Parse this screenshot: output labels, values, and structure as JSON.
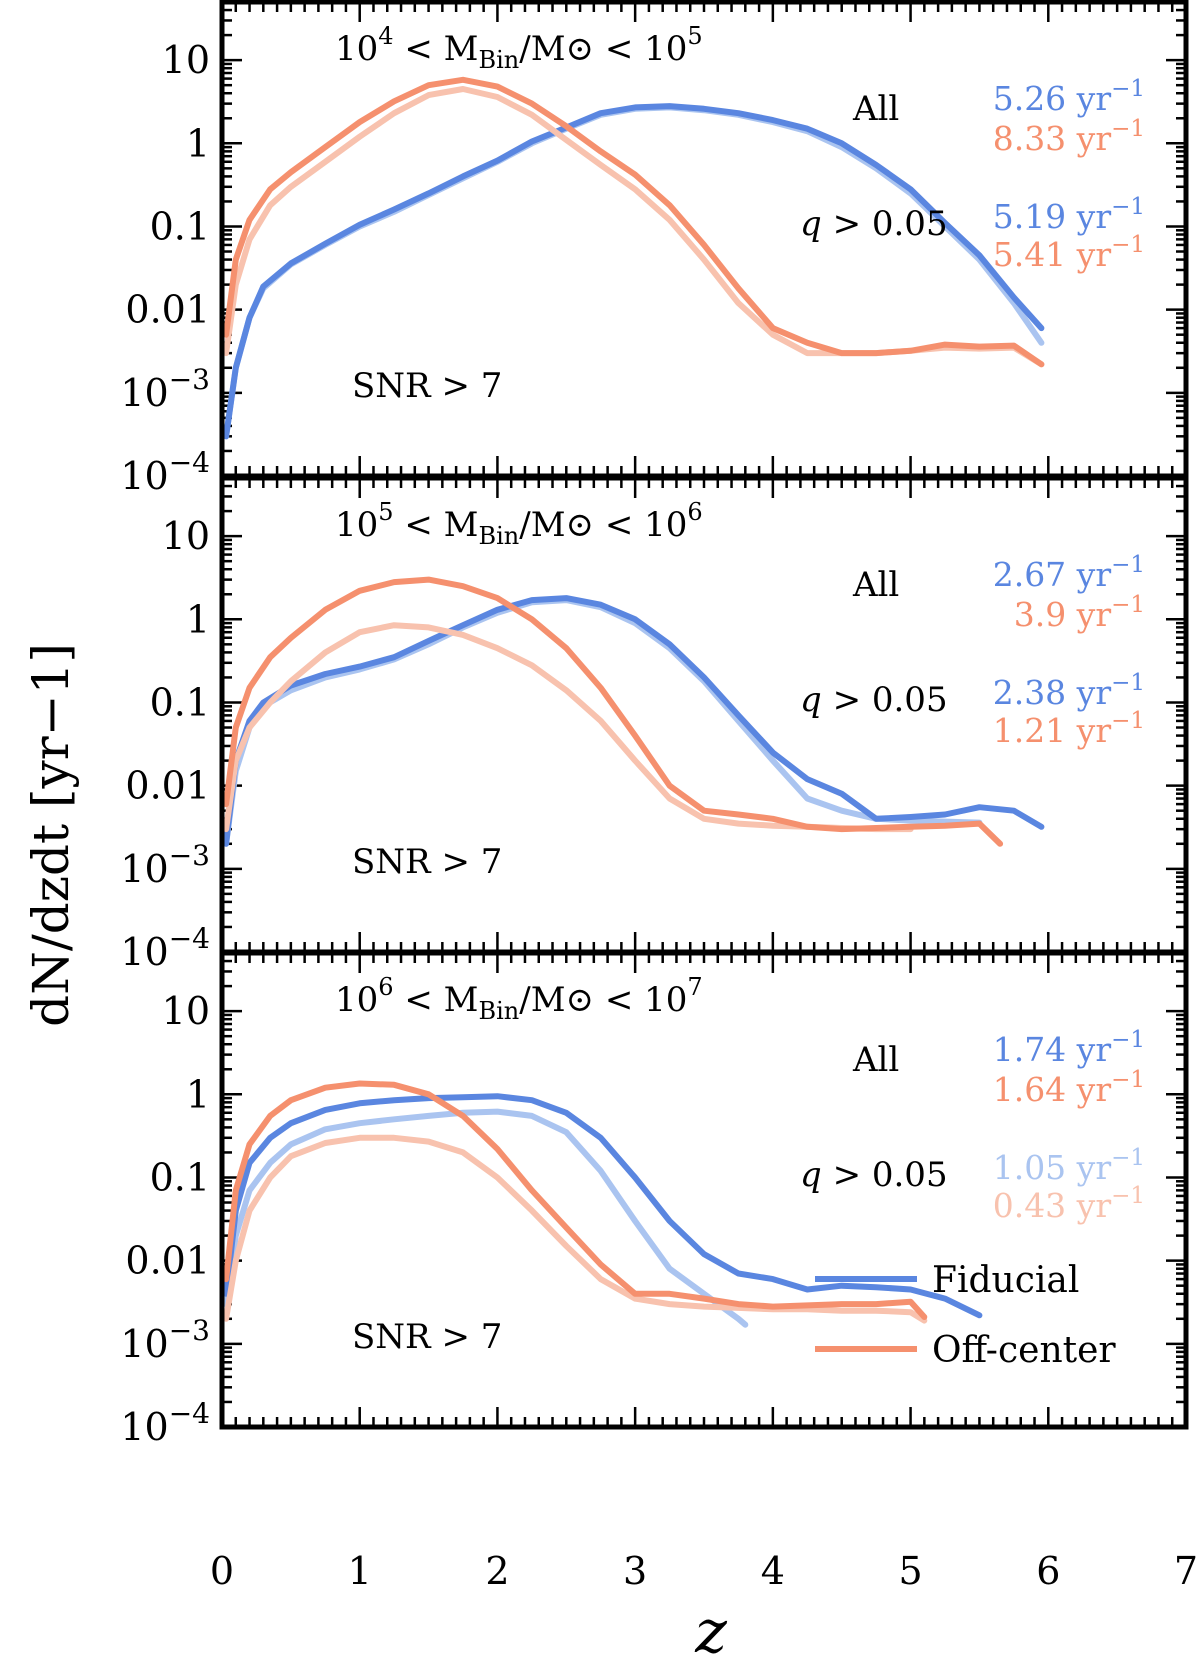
{
  "chart_data": {
    "type": "line",
    "xlabel": "z",
    "ylabel": "dN/dzdt [yr−1]",
    "xlim": [
      0,
      7
    ],
    "ylim": [
      0.0001,
      50
    ],
    "yscale": "log",
    "x_ticks": [
      "0",
      "1",
      "2",
      "3",
      "4",
      "5",
      "6",
      "7"
    ],
    "y_ticks": [
      {
        "value": 10,
        "label": "10"
      },
      {
        "value": 1,
        "label": "1"
      },
      {
        "value": 0.1,
        "label": "0.1"
      },
      {
        "value": 0.01,
        "label": "0.01"
      },
      {
        "value": 0.001,
        "base": "10",
        "exp": "−3"
      },
      {
        "value": 0.0001,
        "base": "10",
        "exp": "−4"
      }
    ],
    "colors": {
      "fiducial": "#5a86e0",
      "fiducial_light": "#aac4f0",
      "offcenter": "#f5906e",
      "offcenter_light": "#f8c2ae"
    },
    "legend": [
      {
        "label": "Fiducial",
        "color": "#5a86e0"
      },
      {
        "label": "Off-center",
        "color": "#f5906e"
      }
    ],
    "panels": [
      {
        "mass_range": {
          "lo_exp": "4",
          "hi_exp": "5",
          "base": "10",
          "sym_lt": "<",
          "m": "M",
          "bin": "Bin",
          "slash": "/",
          "sun": "M⊙"
        },
        "snr_label": "SNR >  7",
        "all_label": "All",
        "q_label": "q > 0.05",
        "rates": {
          "all_fiducial": "5.26 yr−1",
          "all_offcenter": "8.33 yr−1",
          "q_fiducial": "5.19 yr−1",
          "q_offcenter": "5.41 yr−1"
        },
        "series": [
          {
            "name": "Fiducial (q > 0.05)",
            "color": "#aac4f0",
            "x": [
              0.03,
              0.1,
              0.2,
              0.3,
              0.5,
              0.75,
              1,
              1.25,
              1.5,
              1.75,
              2,
              2.25,
              2.5,
              2.75,
              3,
              3.25,
              3.5,
              3.75,
              4,
              4.25,
              4.5,
              4.75,
              5,
              5.25,
              5.5,
              5.75,
              5.95
            ],
            "y": [
              0.0003,
              0.002,
              0.008,
              0.018,
              0.035,
              0.06,
              0.1,
              0.15,
              0.24,
              0.38,
              0.6,
              1.0,
              1.5,
              2.2,
              2.6,
              2.7,
              2.5,
              2.2,
              1.8,
              1.4,
              0.9,
              0.5,
              0.25,
              0.1,
              0.04,
              0.012,
              0.004
            ]
          },
          {
            "name": "Fiducial (All)",
            "color": "#5a86e0",
            "x": [
              0.03,
              0.1,
              0.2,
              0.3,
              0.5,
              0.75,
              1,
              1.25,
              1.5,
              1.75,
              2,
              2.25,
              2.5,
              2.75,
              3,
              3.25,
              3.5,
              3.75,
              4,
              4.25,
              4.5,
              4.75,
              5,
              5.25,
              5.5,
              5.75,
              5.95
            ],
            "y": [
              0.0003,
              0.002,
              0.008,
              0.019,
              0.036,
              0.062,
              0.105,
              0.16,
              0.25,
              0.4,
              0.62,
              1.05,
              1.55,
              2.3,
              2.7,
              2.8,
              2.6,
              2.3,
              1.9,
              1.5,
              1.0,
              0.55,
              0.28,
              0.11,
              0.045,
              0.014,
              0.006
            ]
          },
          {
            "name": "Off-center (q > 0.05)",
            "color": "#f8c2ae",
            "x": [
              0.03,
              0.1,
              0.2,
              0.35,
              0.5,
              0.75,
              1,
              1.25,
              1.5,
              1.75,
              2,
              2.25,
              2.5,
              2.75,
              3,
              3.25,
              3.5,
              3.75,
              4,
              4.25,
              4.5,
              4.75,
              5,
              5.25,
              5.5,
              5.75,
              5.95
            ],
            "y": [
              0.003,
              0.02,
              0.07,
              0.18,
              0.3,
              0.6,
              1.2,
              2.3,
              3.8,
              4.5,
              3.6,
              2.2,
              1.1,
              0.55,
              0.28,
              0.12,
              0.04,
              0.012,
              0.005,
              0.003,
              0.003,
              0.003,
              0.0032,
              0.0035,
              0.0034,
              0.0035,
              0.0022
            ]
          },
          {
            "name": "Off-center (All)",
            "color": "#f5906e",
            "x": [
              0.03,
              0.1,
              0.2,
              0.35,
              0.5,
              0.75,
              1,
              1.25,
              1.5,
              1.75,
              2,
              2.25,
              2.5,
              2.75,
              3,
              3.25,
              3.5,
              3.75,
              4,
              4.25,
              4.5,
              4.75,
              5,
              5.25,
              5.5,
              5.75,
              5.95
            ],
            "y": [
              0.005,
              0.04,
              0.12,
              0.28,
              0.45,
              0.9,
              1.8,
              3.2,
              5.0,
              5.8,
              4.8,
              3.0,
              1.6,
              0.8,
              0.42,
              0.18,
              0.06,
              0.018,
              0.006,
              0.004,
              0.003,
              0.003,
              0.0032,
              0.0038,
              0.0036,
              0.0037,
              0.0022
            ]
          }
        ]
      },
      {
        "mass_range": {
          "lo_exp": "5",
          "hi_exp": "6",
          "base": "10",
          "sym_lt": "<",
          "m": "M",
          "bin": "Bin",
          "slash": "/",
          "sun": "M⊙"
        },
        "snr_label": "SNR >  7",
        "all_label": "All",
        "q_label": "q > 0.05",
        "rates": {
          "all_fiducial": "2.67 yr−1",
          "all_offcenter": "3.9 yr−1",
          "q_fiducial": "2.38 yr−1",
          "q_offcenter": "1.21 yr−1"
        },
        "series": [
          {
            "name": "Fiducial (q > 0.05)",
            "color": "#aac4f0",
            "x": [
              0.03,
              0.1,
              0.2,
              0.3,
              0.5,
              0.75,
              1,
              1.25,
              1.5,
              1.75,
              2,
              2.25,
              2.5,
              2.75,
              3,
              3.25,
              3.5,
              3.75,
              4,
              4.25,
              4.5,
              4.75,
              5,
              5.25,
              5.5
            ],
            "y": [
              0.002,
              0.015,
              0.05,
              0.09,
              0.14,
              0.2,
              0.25,
              0.33,
              0.5,
              0.8,
              1.2,
              1.6,
              1.7,
              1.4,
              0.9,
              0.45,
              0.18,
              0.06,
              0.02,
              0.007,
              0.005,
              0.004,
              0.0038,
              0.0037,
              0.0036
            ]
          },
          {
            "name": "Fiducial (All)",
            "color": "#5a86e0",
            "x": [
              0.03,
              0.1,
              0.2,
              0.3,
              0.5,
              0.75,
              1,
              1.25,
              1.5,
              1.75,
              2,
              2.25,
              2.5,
              2.75,
              3,
              3.25,
              3.5,
              3.75,
              4,
              4.25,
              4.5,
              4.75,
              5,
              5.25,
              5.5,
              5.75,
              5.95
            ],
            "y": [
              0.002,
              0.02,
              0.06,
              0.1,
              0.16,
              0.22,
              0.27,
              0.35,
              0.55,
              0.85,
              1.3,
              1.7,
              1.8,
              1.5,
              1.0,
              0.5,
              0.2,
              0.07,
              0.025,
              0.012,
              0.008,
              0.004,
              0.0042,
              0.0045,
              0.0055,
              0.005,
              0.0032
            ]
          },
          {
            "name": "Off-center (q > 0.05)",
            "color": "#f8c2ae",
            "x": [
              0.03,
              0.1,
              0.2,
              0.35,
              0.5,
              0.75,
              1,
              1.25,
              1.5,
              1.75,
              2,
              2.25,
              2.5,
              2.75,
              3,
              3.25,
              3.5,
              3.75,
              4,
              4.25,
              4.5,
              4.75,
              5
            ],
            "y": [
              0.003,
              0.02,
              0.05,
              0.1,
              0.18,
              0.4,
              0.7,
              0.85,
              0.8,
              0.65,
              0.45,
              0.28,
              0.14,
              0.06,
              0.02,
              0.007,
              0.004,
              0.0035,
              0.0033,
              0.0032,
              0.0031,
              0.003,
              0.003
            ]
          },
          {
            "name": "Off-center (All)",
            "color": "#f5906e",
            "x": [
              0.03,
              0.1,
              0.2,
              0.35,
              0.5,
              0.75,
              1,
              1.25,
              1.5,
              1.75,
              2,
              2.25,
              2.5,
              2.75,
              3,
              3.25,
              3.5,
              3.75,
              4,
              4.25,
              4.5,
              4.75,
              5,
              5.25,
              5.5,
              5.65
            ],
            "y": [
              0.006,
              0.05,
              0.15,
              0.35,
              0.6,
              1.3,
              2.2,
              2.8,
              3.0,
              2.5,
              1.8,
              1.0,
              0.45,
              0.15,
              0.04,
              0.01,
              0.005,
              0.0045,
              0.004,
              0.0032,
              0.003,
              0.0031,
              0.0032,
              0.0033,
              0.0035,
              0.002
            ]
          }
        ]
      },
      {
        "mass_range": {
          "lo_exp": "6",
          "hi_exp": "7",
          "base": "10",
          "sym_lt": "<",
          "m": "M",
          "bin": "Bin",
          "slash": "/",
          "sun": "M⊙"
        },
        "snr_label": "SNR >  7",
        "all_label": "All",
        "q_label": "q > 0.05",
        "rates": {
          "all_fiducial": "1.74 yr−1",
          "all_offcenter": "1.64 yr−1",
          "q_fiducial": "1.05 yr−1",
          "q_offcenter": "0.43 yr−1"
        },
        "series": [
          {
            "name": "Fiducial (q > 0.05)",
            "color": "#aac4f0",
            "x": [
              0.03,
              0.1,
              0.2,
              0.35,
              0.5,
              0.75,
              1,
              1.25,
              1.5,
              1.75,
              2,
              2.25,
              2.5,
              2.75,
              3,
              3.25,
              3.5,
              3.75,
              3.8
            ],
            "y": [
              0.003,
              0.02,
              0.07,
              0.15,
              0.25,
              0.38,
              0.45,
              0.5,
              0.55,
              0.6,
              0.62,
              0.55,
              0.35,
              0.12,
              0.03,
              0.008,
              0.004,
              0.002,
              0.0017
            ]
          },
          {
            "name": "Fiducial (All)",
            "color": "#5a86e0",
            "x": [
              0.03,
              0.1,
              0.2,
              0.35,
              0.5,
              0.75,
              1,
              1.25,
              1.5,
              1.75,
              2,
              2.25,
              2.5,
              2.75,
              3,
              3.25,
              3.5,
              3.75,
              4,
              4.25,
              4.5,
              4.75,
              5,
              5.25,
              5.5
            ],
            "y": [
              0.004,
              0.04,
              0.15,
              0.3,
              0.45,
              0.65,
              0.78,
              0.85,
              0.9,
              0.92,
              0.95,
              0.85,
              0.6,
              0.3,
              0.1,
              0.03,
              0.012,
              0.007,
              0.006,
              0.0045,
              0.005,
              0.0048,
              0.0045,
              0.0035,
              0.0022
            ]
          },
          {
            "name": "Off-center (q > 0.05)",
            "color": "#f8c2ae",
            "x": [
              0.03,
              0.1,
              0.2,
              0.35,
              0.5,
              0.75,
              1,
              1.25,
              1.5,
              1.75,
              2,
              2.25,
              2.5,
              2.75,
              3,
              3.25,
              3.5,
              3.75,
              4,
              4.25,
              4.5,
              4.75,
              5,
              5.1
            ],
            "y": [
              0.002,
              0.01,
              0.04,
              0.1,
              0.18,
              0.26,
              0.3,
              0.3,
              0.27,
              0.2,
              0.1,
              0.04,
              0.015,
              0.006,
              0.0035,
              0.003,
              0.0028,
              0.0027,
              0.0026,
              0.0026,
              0.0025,
              0.0025,
              0.0024,
              0.0019
            ]
          },
          {
            "name": "Off-center (All)",
            "color": "#f5906e",
            "x": [
              0.03,
              0.1,
              0.2,
              0.35,
              0.5,
              0.75,
              1,
              1.25,
              1.5,
              1.75,
              2,
              2.25,
              2.5,
              2.75,
              3,
              3.25,
              3.5,
              3.75,
              4,
              4.25,
              4.5,
              4.75,
              5,
              5.1
            ],
            "y": [
              0.006,
              0.07,
              0.25,
              0.55,
              0.85,
              1.2,
              1.35,
              1.3,
              1.0,
              0.55,
              0.22,
              0.07,
              0.025,
              0.009,
              0.004,
              0.004,
              0.0035,
              0.003,
              0.0028,
              0.0029,
              0.003,
              0.003,
              0.0032,
              0.0021
            ]
          }
        ]
      }
    ]
  }
}
